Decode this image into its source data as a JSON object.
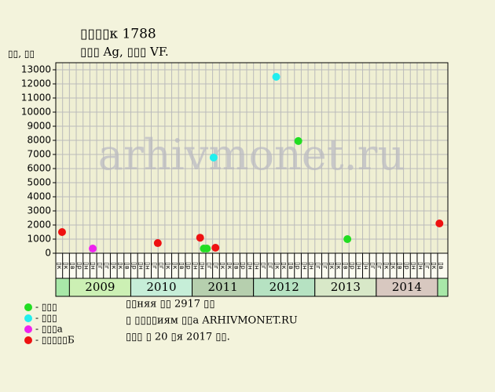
{
  "chart_data": {
    "type": "scatter",
    "title": "▯▯▯▯к 1788",
    "subtitle": "▯▯▯ Ag, ▯▯▯ VF.",
    "y_label": "▯▯, ▯▯",
    "watermark": "arhivmonet.ru",
    "xlim": [
      2008.778,
      2015.167
    ],
    "ylim": [
      0,
      13500
    ],
    "yticks": [
      0,
      1000,
      2000,
      3000,
      4000,
      5000,
      6000,
      7000,
      8000,
      9000,
      10000,
      11000,
      12000,
      13000
    ],
    "grid": true,
    "columns": [
      "▯к",
      "▯к",
      "▯в",
      "▯р",
      "▯н",
      "▯н",
      "▯г",
      "▯г",
      "▯к",
      "▯к",
      "▯в",
      "▯р",
      "▯н",
      "▯н",
      "▯г",
      "▯г",
      "▯к",
      "▯к",
      "▯в",
      "▯р",
      "▯н",
      "▯н",
      "▯г",
      "▯г",
      "▯к",
      "▯к",
      "▯в",
      "▯р",
      "▯н",
      "▯н",
      "▯г",
      "▯г",
      "▯к",
      "▯к",
      "▯в",
      "▯р",
      "▯н",
      "▯н",
      "▯г",
      "▯г",
      "▯к",
      "▯к",
      "▯в",
      "▯р",
      "▯н",
      "▯н",
      "▯г",
      "▯г",
      "▯к",
      "▯к",
      "▯в",
      "▯р",
      "▯н",
      "▯н",
      "▯г",
      "▯к",
      "▯в"
    ],
    "years": [
      2009,
      2010,
      2011,
      2012,
      2013,
      2014
    ],
    "year_colors": [
      "#ccf0b4",
      "#c6eed8",
      "#b6cfae",
      "#b6e2c2",
      "#d8e8c8",
      "#d8c8c0"
    ],
    "series": [
      {
        "name": "- ▯▯▯",
        "color": "#22dd22",
        "x": [
          2011.19,
          2011.24,
          2012.73,
          2013.53
        ],
        "values": [
          330,
          330,
          7950,
          1000
        ]
      },
      {
        "name": "- ▯▯▯",
        "color": "#22eeee",
        "x": [
          2011.35,
          2012.37
        ],
        "values": [
          6780,
          12500
        ]
      },
      {
        "name": "- ▯▯▯а",
        "color": "#ee22ee",
        "x": [
          2009.38
        ],
        "values": [
          330
        ]
      },
      {
        "name": "- ▯▯▯▯▯Б",
        "color": "#ee1111",
        "x": [
          2008.88,
          2010.44,
          2011.13,
          2011.38,
          2015.03
        ],
        "values": [
          1500,
          720,
          1100,
          390,
          2110
        ]
      }
    ],
    "notes": [
      "▯▯няя ▯▯ 2917 ▯▯",
      "▯ ▯▯▯▯иям ▯▯а ARHIVMONET.RU",
      "▯▯▯ ▯ 20 ▯я 2017 ▯▯."
    ]
  }
}
